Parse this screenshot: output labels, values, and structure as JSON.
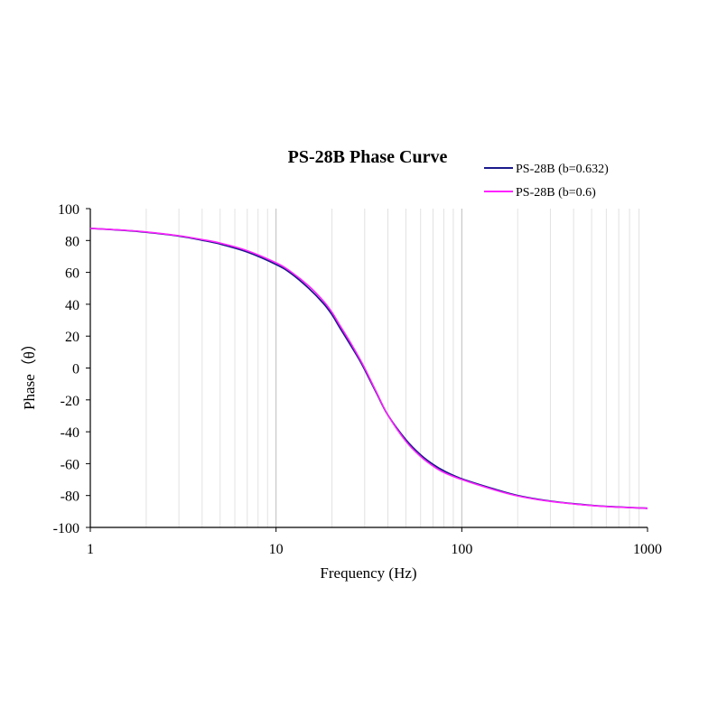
{
  "chart_data": {
    "type": "line",
    "title": "PS-28B Phase Curve",
    "xlabel": "Frequency (Hz)",
    "ylabel": "Phase（θ）",
    "x_scale": "log",
    "xlim": [
      1,
      1000
    ],
    "ylim": [
      -100,
      100
    ],
    "x_ticks": [
      "1",
      "10",
      "100",
      "1000"
    ],
    "x_tick_values": [
      1,
      10,
      100,
      1000
    ],
    "y_ticks": [
      "100",
      "80",
      "60",
      "40",
      "20",
      "0",
      "-20",
      "-40",
      "-60",
      "-80",
      "-100"
    ],
    "y_tick_values": [
      100,
      80,
      60,
      40,
      20,
      0,
      -20,
      -40,
      -60,
      -80,
      -100
    ],
    "grid": "vertical minor log gridlines",
    "legend_position": "top-right",
    "series": [
      {
        "name": "PS-28B (b=0.632)",
        "color": "#1a1a8c",
        "x": [
          1,
          1.5,
          2,
          3,
          4,
          5,
          7,
          10,
          12,
          15,
          18,
          20,
          22,
          25,
          28,
          30,
          35,
          40,
          50,
          60,
          70,
          80,
          100,
          150,
          200,
          300,
          500,
          700,
          1000
        ],
        "y": [
          87.6,
          86.4,
          85.2,
          82.8,
          80.2,
          77.8,
          72.8,
          65,
          59.5,
          50,
          40.5,
          33.5,
          25.5,
          15,
          5.5,
          -1,
          -16.5,
          -29.5,
          -45,
          -54.5,
          -60.5,
          -64.5,
          -69.5,
          -76,
          -80,
          -83.5,
          -86.2,
          -87.2,
          -88
        ]
      },
      {
        "name": "PS-28B (b=0.6)",
        "color": "#ff22ff",
        "x": [
          1,
          1.5,
          2,
          3,
          4,
          5,
          7,
          10,
          12,
          15,
          18,
          20,
          22,
          25,
          28,
          30,
          35,
          40,
          50,
          60,
          70,
          80,
          100,
          150,
          200,
          300,
          500,
          700,
          1000
        ],
        "y": [
          87.6,
          86.5,
          85.4,
          83,
          80.6,
          78.4,
          73.6,
          66,
          60.5,
          51.5,
          42,
          35,
          27,
          16.5,
          6.5,
          0,
          -16,
          -29.5,
          -46,
          -55.5,
          -61.5,
          -65.5,
          -70,
          -76.5,
          -80.3,
          -83.7,
          -86.3,
          -87.3,
          -88
        ]
      }
    ]
  }
}
